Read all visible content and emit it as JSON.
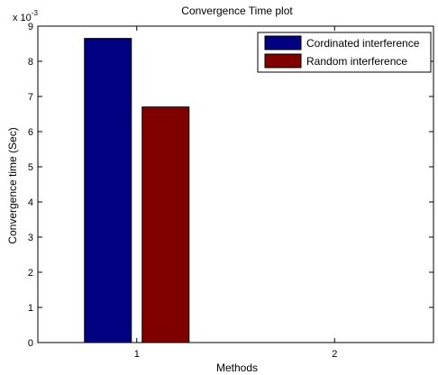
{
  "chart_data": {
    "type": "bar",
    "title": "Convergence Time plot",
    "xlabel": "Methods",
    "ylabel": "Convergence time (Sec)",
    "y_multiplier": "x 10",
    "y_multiplier_exponent": "-3",
    "categories": [
      "1",
      "2"
    ],
    "ylim": [
      0,
      9
    ],
    "yticks": [
      "0",
      "1",
      "2",
      "3",
      "4",
      "5",
      "6",
      "7",
      "8",
      "9"
    ],
    "grid": false,
    "legend_position": "top-right",
    "series": [
      {
        "name": "Cordinated interference",
        "color": "#000080",
        "values": [
          8.65,
          0
        ]
      },
      {
        "name": "Random interference",
        "color": "#800000",
        "values": [
          6.7,
          0
        ]
      }
    ]
  }
}
